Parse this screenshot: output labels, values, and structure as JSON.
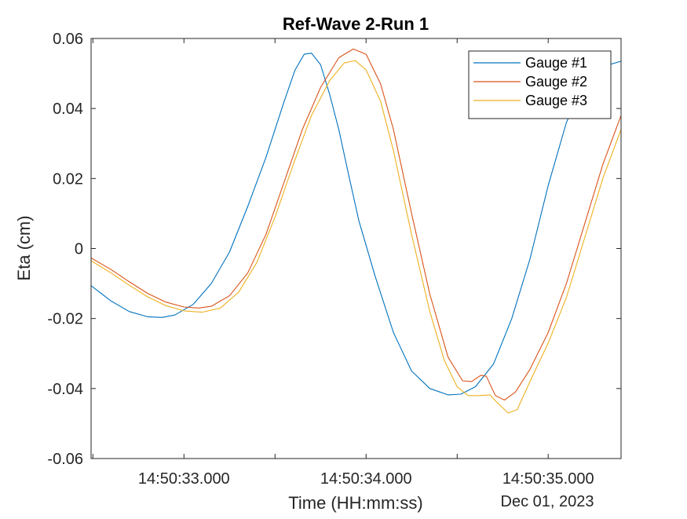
{
  "chart_data": {
    "type": "line",
    "title": "Ref-Wave 2-Run 1",
    "xlabel": "Time (HH:mm:ss)",
    "ylabel": "Eta (cm)",
    "date_label": "Dec 01, 2023",
    "xlim": [
      "14:50:32.490",
      "14:50:35.400"
    ],
    "ylim": [
      -0.06,
      0.06
    ],
    "x_ticks": [
      "14:50:32.500",
      "14:50:33.000",
      "14:50:33.500",
      "14:50:34.000",
      "14:50:34.500",
      "14:50:35.000"
    ],
    "x_tick_labels": [
      {
        "at": "14:50:33.000",
        "label": "14:50:33.000"
      },
      {
        "at": "14:50:34.000",
        "label": "14:50:34.000"
      },
      {
        "at": "14:50:35.000",
        "label": "14:50:35.000"
      }
    ],
    "y_ticks": [
      -0.06,
      -0.04,
      -0.02,
      0,
      0.02,
      0.04,
      0.06
    ],
    "y_tick_labels": [
      "-0.06",
      "-0.04",
      "-0.02",
      "0",
      "0.02",
      "0.04",
      "0.06"
    ],
    "grid": false,
    "legend": "top-right",
    "series": [
      {
        "name": "Gauge #1",
        "color": "#0072BD",
        "points": [
          [
            "14:50:32.490",
            -0.0106
          ],
          [
            "14:50:32.600",
            -0.015
          ],
          [
            "14:50:32.700",
            -0.018
          ],
          [
            "14:50:32.800",
            -0.0195
          ],
          [
            "14:50:32.880",
            -0.0197
          ],
          [
            "14:50:32.950",
            -0.019
          ],
          [
            "14:50:33.050",
            -0.016
          ],
          [
            "14:50:33.150",
            -0.01
          ],
          [
            "14:50:33.250",
            -0.001
          ],
          [
            "14:50:33.350",
            0.012
          ],
          [
            "14:50:33.450",
            0.026
          ],
          [
            "14:50:33.550",
            0.042
          ],
          [
            "14:50:33.610",
            0.051
          ],
          [
            "14:50:33.660",
            0.0555
          ],
          [
            "14:50:33.700",
            0.0558
          ],
          [
            "14:50:33.750",
            0.0525
          ],
          [
            "14:50:33.800",
            0.044
          ],
          [
            "14:50:33.850",
            0.034
          ],
          [
            "14:50:33.900",
            0.022
          ],
          [
            "14:50:33.960",
            0.008
          ],
          [
            "14:50:34.050",
            -0.008
          ],
          [
            "14:50:34.150",
            -0.024
          ],
          [
            "14:50:34.250",
            -0.035
          ],
          [
            "14:50:34.350",
            -0.04
          ],
          [
            "14:50:34.450",
            -0.0418
          ],
          [
            "14:50:34.520",
            -0.0416
          ],
          [
            "14:50:34.600",
            -0.0395
          ],
          [
            "14:50:34.700",
            -0.033
          ],
          [
            "14:50:34.800",
            -0.02
          ],
          [
            "14:50:34.900",
            -0.003
          ],
          [
            "14:50:35.000",
            0.018
          ],
          [
            "14:50:35.100",
            0.036
          ],
          [
            "14:50:35.200",
            0.047
          ],
          [
            "14:50:35.300",
            0.052
          ],
          [
            "14:50:35.400",
            0.0535
          ]
        ]
      },
      {
        "name": "Gauge #2",
        "color": "#D95319",
        "points": [
          [
            "14:50:32.490",
            -0.0027
          ],
          [
            "14:50:32.600",
            -0.006
          ],
          [
            "14:50:32.700",
            -0.0095
          ],
          [
            "14:50:32.800",
            -0.0128
          ],
          [
            "14:50:32.900",
            -0.0153
          ],
          [
            "14:50:33.000",
            -0.0167
          ],
          [
            "14:50:33.080",
            -0.017
          ],
          [
            "14:50:33.150",
            -0.0165
          ],
          [
            "14:50:33.250",
            -0.0135
          ],
          [
            "14:50:33.350",
            -0.007
          ],
          [
            "14:50:33.450",
            0.004
          ],
          [
            "14:50:33.550",
            0.019
          ],
          [
            "14:50:33.650",
            0.034
          ],
          [
            "14:50:33.750",
            0.046
          ],
          [
            "14:50:33.850",
            0.0545
          ],
          [
            "14:50:33.930",
            0.057
          ],
          [
            "14:50:34.000",
            0.0555
          ],
          [
            "14:50:34.080",
            0.047
          ],
          [
            "14:50:34.150",
            0.034
          ],
          [
            "14:50:34.250",
            0.01
          ],
          [
            "14:50:34.350",
            -0.013
          ],
          [
            "14:50:34.450",
            -0.031
          ],
          [
            "14:50:34.530",
            -0.0378
          ],
          [
            "14:50:34.580",
            -0.038
          ],
          [
            "14:50:34.630",
            -0.0362
          ],
          [
            "14:50:34.660",
            -0.0365
          ],
          [
            "14:50:34.710",
            -0.042
          ],
          [
            "14:50:34.760",
            -0.0433
          ],
          [
            "14:50:34.820",
            -0.041
          ],
          [
            "14:50:34.900",
            -0.0345
          ],
          [
            "14:50:35.000",
            -0.024
          ],
          [
            "14:50:35.100",
            -0.01
          ],
          [
            "14:50:35.200",
            0.007
          ],
          [
            "14:50:35.300",
            0.024
          ],
          [
            "14:50:35.400",
            0.038
          ]
        ]
      },
      {
        "name": "Gauge #3",
        "color": "#EDB120",
        "points": [
          [
            "14:50:32.490",
            -0.0035
          ],
          [
            "14:50:32.600",
            -0.007
          ],
          [
            "14:50:32.700",
            -0.0105
          ],
          [
            "14:50:32.800",
            -0.0138
          ],
          [
            "14:50:32.900",
            -0.0163
          ],
          [
            "14:50:33.000",
            -0.0178
          ],
          [
            "14:50:33.100",
            -0.0182
          ],
          [
            "14:50:33.200",
            -0.017
          ],
          [
            "14:50:33.300",
            -0.0125
          ],
          [
            "14:50:33.400",
            -0.004
          ],
          [
            "14:50:33.500",
            0.009
          ],
          [
            "14:50:33.600",
            0.024
          ],
          [
            "14:50:33.700",
            0.038
          ],
          [
            "14:50:33.800",
            0.048
          ],
          [
            "14:50:33.880",
            0.053
          ],
          [
            "14:50:33.940",
            0.0537
          ],
          [
            "14:50:34.000",
            0.051
          ],
          [
            "14:50:34.080",
            0.042
          ],
          [
            "14:50:34.150",
            0.028
          ],
          [
            "14:50:34.250",
            0.004
          ],
          [
            "14:50:34.350",
            -0.018
          ],
          [
            "14:50:34.430",
            -0.032
          ],
          [
            "14:50:34.500",
            -0.0395
          ],
          [
            "14:50:34.560",
            -0.042
          ],
          [
            "14:50:34.620",
            -0.042
          ],
          [
            "14:50:34.680",
            -0.0418
          ],
          [
            "14:50:34.720",
            -0.044
          ],
          [
            "14:50:34.780",
            -0.047
          ],
          [
            "14:50:34.830",
            -0.046
          ],
          [
            "14:50:34.900",
            -0.038
          ],
          [
            "14:50:35.000",
            -0.027
          ],
          [
            "14:50:35.100",
            -0.014
          ],
          [
            "14:50:35.200",
            0.003
          ],
          [
            "14:50:35.300",
            0.02
          ],
          [
            "14:50:35.400",
            0.034
          ]
        ]
      }
    ]
  }
}
